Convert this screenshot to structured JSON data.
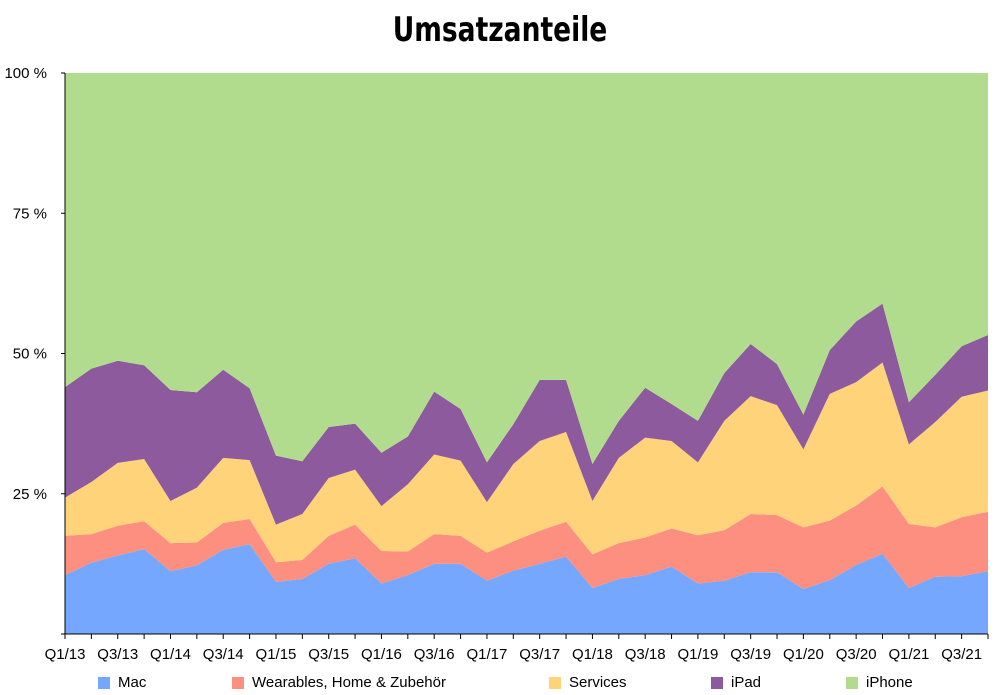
{
  "chart_data": {
    "type": "area",
    "stacked": true,
    "normalized": true,
    "title": "Umsatzanteile",
    "ylim": [
      0,
      100
    ],
    "yticks": [
      0,
      25,
      50,
      75,
      100
    ],
    "ytick_labels": [
      "",
      "25 %",
      "50 %",
      "75 %",
      "100 %"
    ],
    "categories": [
      "Q1/13",
      "Q2/13",
      "Q3/13",
      "Q4/13",
      "Q1/14",
      "Q2/14",
      "Q3/14",
      "Q4/14",
      "Q1/15",
      "Q2/15",
      "Q3/15",
      "Q4/15",
      "Q1/16",
      "Q2/16",
      "Q3/16",
      "Q4/16",
      "Q1/17",
      "Q2/17",
      "Q3/17",
      "Q4/17",
      "Q1/18",
      "Q2/18",
      "Q3/18",
      "Q4/18",
      "Q1/19",
      "Q2/19",
      "Q3/19",
      "Q4/19",
      "Q1/20",
      "Q2/20",
      "Q3/20",
      "Q4/20",
      "Q1/21",
      "Q2/21",
      "Q3/21",
      "Q4/21"
    ],
    "x_tick_labels": [
      "Q1/13",
      "Q3/13",
      "Q1/14",
      "Q3/14",
      "Q1/15",
      "Q3/15",
      "Q1/16",
      "Q3/16",
      "Q1/17",
      "Q3/17",
      "Q1/18",
      "Q3/18",
      "Q1/19",
      "Q3/19",
      "Q1/20",
      "Q3/20",
      "Q1/21",
      "Q3/21"
    ],
    "grid": false,
    "legend_position": "bottom",
    "series": [
      {
        "name": "Mac",
        "color": "#74a7fd",
        "values": [
          10.5,
          12.7,
          14,
          15.1,
          11.2,
          12.2,
          15,
          16,
          9.3,
          9.8,
          12.5,
          13.5,
          9,
          10.5,
          12.5,
          12.5,
          9.5,
          11.3,
          12.5,
          13.8,
          8.2,
          9.8,
          10.5,
          12,
          9,
          9.5,
          11,
          11,
          8,
          9.6,
          12.3,
          14.3,
          8.2,
          10.2,
          10.3,
          11.2
        ]
      },
      {
        "name": "Wearables, Home & Zubehör",
        "color": "#fd8f80",
        "values": [
          7,
          5.1,
          5.3,
          5,
          5,
          4.1,
          4.8,
          4.5,
          3.5,
          3.4,
          5,
          6,
          5.8,
          4.2,
          5.3,
          5,
          5,
          5.2,
          5.9,
          6.2,
          6,
          6.4,
          6.7,
          6.8,
          8.6,
          9,
          10.4,
          10.2,
          11,
          10.6,
          10.6,
          12,
          11.4,
          8.8,
          10.5,
          10.6
        ]
      },
      {
        "name": "Services",
        "color": "#ffd37a",
        "values": [
          6.8,
          9.3,
          11.2,
          11.1,
          7.5,
          9.8,
          11.6,
          10.5,
          6.7,
          8.2,
          10.3,
          9.8,
          8,
          12,
          14.2,
          13.4,
          9,
          13.8,
          16,
          16,
          9.5,
          15.2,
          17.8,
          15.6,
          13,
          19.5,
          21,
          19.6,
          13.9,
          22.6,
          22,
          22.1,
          14.2,
          18.8,
          21.5,
          21.6
        ]
      },
      {
        "name": "iPad",
        "color": "#8d5a9e",
        "values": [
          19.7,
          20.2,
          18.2,
          16.7,
          19.8,
          17,
          15.7,
          12.8,
          12.3,
          9.4,
          9.1,
          8.2,
          9.5,
          8.5,
          11.2,
          9.2,
          7.1,
          7.1,
          10.9,
          9.3,
          6.6,
          6.6,
          8.9,
          6.6,
          7.4,
          8.5,
          9.3,
          7.3,
          6.2,
          7.8,
          10.8,
          10.5,
          7.5,
          8.4,
          9,
          9.9
        ]
      },
      {
        "name": "iPhone",
        "color": "#b2dc8d",
        "values": [
          56,
          52.7,
          51.3,
          52.1,
          56.5,
          56.9,
          52.9,
          56.2,
          68.2,
          69.2,
          63.1,
          62.5,
          67.7,
          64.8,
          56.8,
          59.9,
          69.4,
          62.6,
          54.7,
          54.7,
          69.7,
          62,
          56.1,
          59,
          62,
          53.5,
          48.3,
          51.9,
          60.9,
          49.4,
          44.3,
          41.1,
          58.7,
          53.8,
          48.7,
          46.7
        ]
      }
    ]
  }
}
